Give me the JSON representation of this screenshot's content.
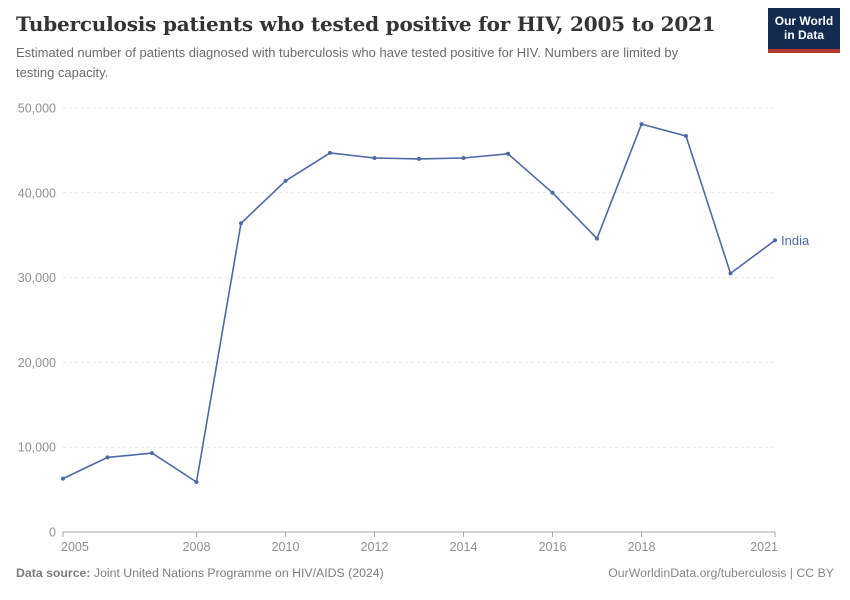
{
  "header": {
    "title": "Tuberculosis patients who tested positive for HIV, 2005 to 2021",
    "subtitle": "Estimated number of patients diagnosed with tuberculosis who have tested positive for HIV. Numbers are limited by testing capacity."
  },
  "logo": {
    "line1": "Our World",
    "line2": "in Data",
    "bg_color": "#122b4f",
    "accent_color": "#b13830"
  },
  "chart_data": {
    "type": "line",
    "title": "Tuberculosis patients who tested positive for HIV, 2005 to 2021",
    "xlabel": "",
    "ylabel": "",
    "x": [
      2005,
      2006,
      2007,
      2008,
      2009,
      2010,
      2011,
      2012,
      2013,
      2014,
      2015,
      2016,
      2017,
      2018,
      2019,
      2020,
      2021
    ],
    "series": [
      {
        "name": "India",
        "values": [
          6300,
          8800,
          9300,
          5900,
          36400,
          41400,
          44700,
          44100,
          44000,
          44100,
          44600,
          40000,
          34600,
          48100,
          46700,
          30500,
          34400
        ]
      }
    ],
    "xlim": [
      2005,
      2021
    ],
    "ylim": [
      0,
      50000
    ],
    "xticks": [
      2005,
      2008,
      2010,
      2012,
      2014,
      2016,
      2018,
      2021
    ],
    "yticks": [
      0,
      10000,
      20000,
      30000,
      40000,
      50000
    ],
    "grid": true,
    "gridline_style": "dashed",
    "legend_position": "end-of-line-label",
    "line_color": "#4C6AA5",
    "grid_color": "#e3e3e3",
    "axis_color": "#a5a5a5",
    "tick_label_color": "#8f8f8f"
  },
  "footer": {
    "source_label": "Data source:",
    "source_text": " Joint United Nations Programme on HIV/AIDS (2024)",
    "right_text": "OurWorldinData.org/tuberculosis | CC BY"
  }
}
